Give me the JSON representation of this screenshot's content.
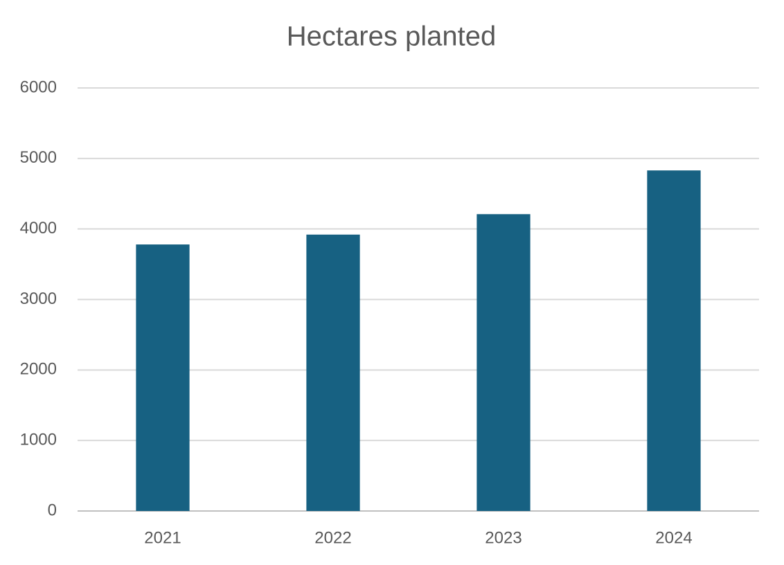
{
  "chart_data": {
    "type": "bar",
    "title": "Hectares planted",
    "categories": [
      "2021",
      "2022",
      "2023",
      "2024"
    ],
    "values": [
      3780,
      3920,
      4210,
      4830
    ],
    "color": "#176182",
    "ylim": [
      0,
      6000
    ],
    "yticks": [
      0,
      1000,
      2000,
      3000,
      4000,
      5000,
      6000
    ],
    "grid": true
  }
}
